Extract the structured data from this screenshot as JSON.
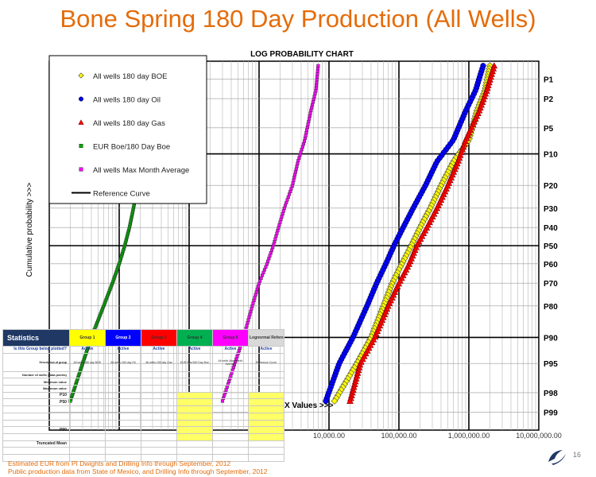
{
  "slide": {
    "title": "Bone Spring 180 Day Production (All Wells)",
    "page_number": "16",
    "footnotes": [
      "Estimated EUR from PI Dwights and Drilling Info through September, 2012",
      "Public production data from State of Mexico, and Drilling Info through September, 2012"
    ]
  },
  "chart_data": {
    "type": "scatter",
    "title": "LOG PROBABILITY CHART",
    "ylabel": "Cumulative probability >>>",
    "xlabel": "X Values >>>",
    "x_scale": "log",
    "x_ticks": [
      "10,000.00",
      "100,000.00",
      "1,000,000.00",
      "10,000,000.00"
    ],
    "y_scale": "probability",
    "y_ticks": [
      "P1",
      "P2",
      "P5",
      "P10",
      "P20",
      "P30",
      "P40",
      "P50",
      "P60",
      "P70",
      "P80",
      "P90",
      "P95",
      "P98",
      "P99"
    ],
    "y_tick_values": [
      1,
      2,
      5,
      10,
      20,
      30,
      40,
      50,
      60,
      70,
      80,
      90,
      95,
      98,
      99
    ],
    "legend_position": "top-left",
    "grid": true,
    "series": [
      {
        "name": "All wells 180 day BOE",
        "marker": "diamond",
        "color": "#ffff00",
        "points": [
          [
            2000000,
            0.6
          ],
          [
            1700000,
            1.5
          ],
          [
            1300000,
            3
          ],
          [
            1000000,
            7
          ],
          [
            600000,
            12
          ],
          [
            400000,
            20
          ],
          [
            280000,
            30
          ],
          [
            200000,
            40
          ],
          [
            150000,
            50
          ],
          [
            110000,
            60
          ],
          [
            80000,
            70
          ],
          [
            60000,
            80
          ],
          [
            40000,
            90
          ],
          [
            25000,
            95
          ],
          [
            12000,
            98.5
          ]
        ]
      },
      {
        "name": "All wells 180 day Oil",
        "marker": "circle",
        "color": "#0000ff",
        "points": [
          [
            1600000,
            0.6
          ],
          [
            1250000,
            1.5
          ],
          [
            900000,
            3
          ],
          [
            600000,
            7
          ],
          [
            350000,
            12
          ],
          [
            240000,
            20
          ],
          [
            160000,
            30
          ],
          [
            115000,
            40
          ],
          [
            85000,
            50
          ],
          [
            65000,
            60
          ],
          [
            48000,
            70
          ],
          [
            35000,
            80
          ],
          [
            22000,
            90
          ],
          [
            14000,
            95
          ],
          [
            9000,
            98.5
          ]
        ]
      },
      {
        "name": "All wells 180 day Gas",
        "marker": "triangle",
        "color": "#ff0000",
        "points": [
          [
            2300000,
            0.6
          ],
          [
            1800000,
            1.5
          ],
          [
            1400000,
            3
          ],
          [
            900000,
            7
          ],
          [
            700000,
            12
          ],
          [
            500000,
            20
          ],
          [
            350000,
            30
          ],
          [
            250000,
            40
          ],
          [
            180000,
            50
          ],
          [
            140000,
            60
          ],
          [
            100000,
            70
          ],
          [
            70000,
            80
          ],
          [
            45000,
            90
          ],
          [
            28000,
            95
          ],
          [
            20000,
            98.5
          ]
        ]
      },
      {
        "name": "EUR Boe/180 Day Boe",
        "marker": "square",
        "color": "#00aa00",
        "points": [
          [
            18,
            21
          ],
          [
            16,
            30
          ],
          [
            14,
            40
          ],
          [
            12,
            50
          ],
          [
            10,
            60
          ],
          [
            8,
            70
          ],
          [
            6,
            80
          ],
          [
            4,
            90
          ],
          [
            3,
            95
          ],
          [
            2,
            98.5
          ]
        ]
      },
      {
        "name": "All wells Max Month Average",
        "marker": "square",
        "color": "#ff00ff",
        "points": [
          [
            7000,
            0.6
          ],
          [
            6500,
            1.5
          ],
          [
            5500,
            3
          ],
          [
            4500,
            7
          ],
          [
            3600,
            12
          ],
          [
            3000,
            20
          ],
          [
            2300,
            30
          ],
          [
            1900,
            40
          ],
          [
            1600,
            50
          ],
          [
            1300,
            60
          ],
          [
            1000,
            70
          ],
          [
            800,
            80
          ],
          [
            600,
            90
          ],
          [
            450,
            95
          ],
          [
            300,
            98.5
          ]
        ]
      },
      {
        "name": "Reference Curve",
        "marker": "line",
        "color": "#000000",
        "points": []
      }
    ]
  },
  "stats_table": {
    "headers": [
      "Statistics",
      "Group 1",
      "Group 2",
      "Group 3",
      "Group 4",
      "Group 5",
      "Lognormal Reference Curve"
    ],
    "header_colors": [
      "#1f3864",
      "#ffff00",
      "#0000ff",
      "#ff0000",
      "#00b050",
      "#ff00ff",
      "#d9d9d9"
    ],
    "rows": [
      {
        "label": "Is this Group being plotted?",
        "values": [
          "Active",
          "Active",
          "Active",
          "Active",
          "Active",
          "Active"
        ],
        "kind": "act"
      },
      {
        "label": "Description of group",
        "values": [
          "All wells 180 day BOE",
          "All wells 180 day Oil",
          "All wells 180 day Gas",
          "EUR Boe/180 Day Boe",
          "All wells Max Month Average",
          "Reference Curve"
        ],
        "kind": "desc"
      },
      {
        "label": "Number of wells (data points)",
        "values": [
          "",
          "",
          "",
          "",
          "",
          ""
        ],
        "kind": ""
      },
      {
        "label": "Minimum value",
        "values": [
          "",
          "",
          "",
          "",
          "",
          ""
        ],
        "kind": ""
      },
      {
        "label": "Maximum value",
        "values": [
          "",
          "",
          "",
          "",
          "",
          ""
        ],
        "kind": ""
      },
      {
        "label": "P10",
        "values": [
          "",
          "",
          "",
          "",
          "",
          ""
        ],
        "kind": "hl bold"
      },
      {
        "label": "P50",
        "values": [
          "",
          "",
          "",
          "",
          "",
          ""
        ],
        "kind": "hl bold"
      },
      {
        "label": "",
        "values": [
          "",
          "",
          "",
          "",
          "",
          ""
        ],
        "kind": "hl"
      },
      {
        "label": "",
        "values": [
          "",
          "",
          "",
          "",
          "",
          ""
        ],
        "kind": "hl"
      },
      {
        "label": "",
        "values": [
          "",
          "",
          "",
          "",
          "",
          ""
        ],
        "kind": "hl bold"
      },
      {
        "label": "P90",
        "values": [
          "",
          "",
          "",
          "",
          "",
          ""
        ],
        "kind": "hl bold"
      },
      {
        "label": "",
        "values": [
          "",
          "",
          "",
          "",
          "",
          ""
        ],
        "kind": "hl"
      },
      {
        "label": "Truncated Mean",
        "values": [
          "",
          "",
          "",
          "",
          "",
          ""
        ],
        "kind": "bold"
      },
      {
        "label": "",
        "values": [
          "",
          "",
          "",
          "",
          "",
          ""
        ],
        "kind": ""
      },
      {
        "label": "",
        "values": [
          "",
          "",
          "",
          "",
          "",
          ""
        ],
        "kind": ""
      }
    ]
  }
}
